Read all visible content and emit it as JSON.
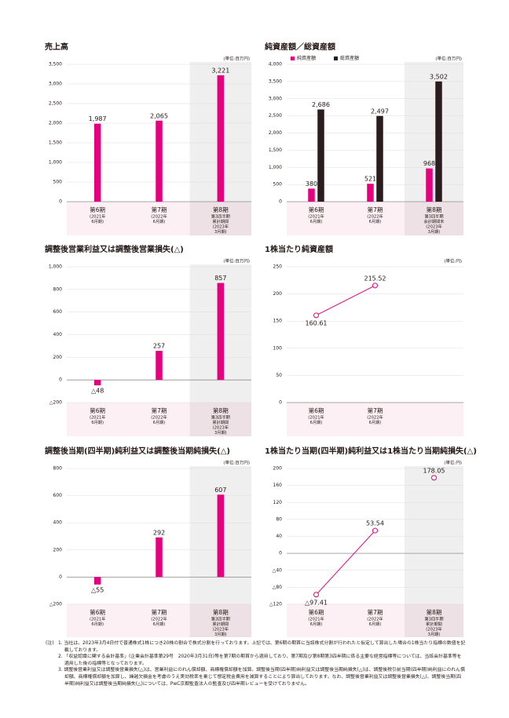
{
  "chart_data": [
    {
      "type": "bar",
      "title": "売上高",
      "unit": "(単位:百万円)",
      "categories": [
        "第6期",
        "第7期",
        "第8期"
      ],
      "category_sublabels": [
        [
          "(2021年",
          "6月期)"
        ],
        [
          "(2022年",
          "6月期)"
        ],
        [
          "第3四半期",
          "累計期間",
          "(2023年",
          "3月期)"
        ]
      ],
      "values": [
        1987,
        2065,
        3221
      ],
      "value_labels": [
        "1,987",
        "2,065",
        "3,221"
      ],
      "color": "#e4007f",
      "ylim": [
        0,
        3500
      ],
      "yticks": [
        0,
        500,
        {
          "value": 1000,
          "label": "1,000"
        },
        {
          "value": 1500,
          "label": "1,500"
        },
        {
          "value": 2000,
          "label": "2,000"
        },
        {
          "value": 2500,
          "label": "2,500"
        },
        {
          "value": 3000,
          "label": "3,000"
        },
        {
          "value": 3500,
          "label": "3,500"
        }
      ],
      "grid": true,
      "highlight": 2
    },
    {
      "type": "bar",
      "title": "純資産額／総資産額",
      "unit": "(単位:百万円)",
      "categories": [
        "第6期",
        "第7期",
        "第8期"
      ],
      "category_sublabels": [
        [
          "(2021年",
          "6月期)"
        ],
        [
          "(2022年",
          "6月期)"
        ],
        [
          "第3四半期",
          "会計期間末",
          "(2023年",
          "3月期)"
        ]
      ],
      "series": [
        {
          "name": "純資産額",
          "color": "#e4007f",
          "values": [
            380,
            521,
            968
          ]
        },
        {
          "name": "総資産額",
          "color": "#2b1d1f",
          "values": [
            2686,
            2497,
            3502
          ],
          "value_labels": [
            "2,686",
            "2,497",
            "3,502"
          ]
        }
      ],
      "ylim": [
        0,
        4000
      ],
      "yticks": [
        0,
        500,
        {
          "value": 1000,
          "label": "1,000"
        },
        {
          "value": 1500,
          "label": "1,500"
        },
        {
          "value": 2000,
          "label": "2,000"
        },
        {
          "value": 2500,
          "label": "2,500"
        },
        {
          "value": 3000,
          "label": "3,000"
        },
        {
          "value": 3500,
          "label": "3,500"
        },
        {
          "value": 4000,
          "label": "4,000"
        }
      ],
      "grid": true,
      "highlight": 2,
      "legend": "top-left"
    },
    {
      "type": "bar",
      "title": "調整後営業利益又は調整後営業損失(△)",
      "unit": "(単位:百万円)",
      "categories": [
        "第6期",
        "第7期",
        "第8期"
      ],
      "category_sublabels": [
        [
          "(2021年",
          "6月期)"
        ],
        [
          "(2022年",
          "6月期)"
        ],
        [
          "第3四半期",
          "累計期間",
          "(2023年",
          "3月期)"
        ]
      ],
      "values": [
        -48,
        257,
        857
      ],
      "value_labels": [
        "△48",
        "257",
        "857"
      ],
      "color": "#e4007f",
      "ylim": [
        -200,
        1000
      ],
      "yticks": [
        {
          "value": -200,
          "label": "△200"
        },
        0,
        200,
        400,
        600,
        800,
        {
          "value": 1000,
          "label": "1,000"
        }
      ],
      "grid": true,
      "highlight": 2
    },
    {
      "type": "line",
      "title": "1株当たり純資産額",
      "unit": "(単位:円)",
      "categories": [
        "第6期",
        "第7期",
        null
      ],
      "category_sublabels": [
        [
          "(2021年",
          "6月期)"
        ],
        [
          "(2022年",
          "6月期)"
        ],
        null
      ],
      "values": [
        160.61,
        215.52,
        null
      ],
      "color": "#e4007f",
      "ylim": [
        0,
        250
      ],
      "yticks": [
        0,
        50,
        100,
        150,
        200,
        250
      ],
      "grid": true
    },
    {
      "type": "bar",
      "title": "調整後当期(四半期)純利益又は調整後当期純損失(△)",
      "unit": "(単位:百万円)",
      "categories": [
        "第6期",
        "第7期",
        "第8期"
      ],
      "category_sublabels": [
        [
          "(2021年",
          "6月期)"
        ],
        [
          "(2022年",
          "6月期)"
        ],
        [
          "第3四半期",
          "累計期間",
          "(2023年",
          "3月期)"
        ]
      ],
      "values": [
        -55,
        292,
        607
      ],
      "value_labels": [
        "△55",
        "292",
        "607"
      ],
      "color": "#e4007f",
      "ylim": [
        -200,
        800
      ],
      "yticks": [
        {
          "value": -200,
          "label": "△200"
        },
        0,
        200,
        400,
        600,
        800
      ],
      "grid": true,
      "highlight": 2
    },
    {
      "type": "line",
      "title": "1株当たり当期(四半期)純利益又は1株当たり当期純損失(△)",
      "unit": "(単位:円)",
      "categories": [
        "第6期",
        "第7期",
        "第8期"
      ],
      "category_sublabels": [
        [
          "(2021年",
          "6月期)"
        ],
        [
          "(2022年",
          "6月期)"
        ],
        [
          "第3四半期",
          "累計期間",
          "(2023年",
          "3月期)"
        ]
      ],
      "values": [
        -97.41,
        53.54,
        178.05
      ],
      "value_labels": [
        "△97.41",
        "53.54",
        "178.05"
      ],
      "color": "#e4007f",
      "ylim": [
        -120,
        200
      ],
      "yticks": [
        {
          "value": -120,
          "label": "△120"
        },
        {
          "value": -80,
          "label": "△80"
        },
        {
          "value": -40,
          "label": "△40"
        },
        0,
        40,
        80,
        120,
        160,
        200
      ],
      "grid": true,
      "highlight": 2
    }
  ],
  "notes": {
    "label": "(注)",
    "items": [
      "1. 当社は、2023年3月4日付で普通株式1株につき20株の割合で株式分割を行っております。上記では、第6期の期首に当該株式分割が行われたと仮定して算出した場合の1株当たり指標の数値を記載しております。",
      "2. 「収益認識に関する会計基準」(企業会計基準第29号　2020年3月31日)等を第7期の期首から適用しており、第7期及び第8期第3四半期に係る主要な経営指標等については、当該会計基準等を適用した後の指標等となっております。",
      "3. 調整後営業利益又は調整後営業損失(△)は、営業利益にのれん償却額、商標権償却額を加算。調整後当期(四半期)純利益又は調整後当期純損失(△)は、調整後税引前当期(四半期)純利益にのれん償却額、商標権償却額を加算し、繰越欠損金を考慮のうえ実効税率を乗じて想定税金費用を減算することにより算出しております。なお、調整後営業利益又は調整後営業損失(△)、調整後当期(四半期)純利益又は調整後当期純損失(△)については、PwC京都監査法人の監査及び四半期レビューを受けておりません。"
    ]
  }
}
